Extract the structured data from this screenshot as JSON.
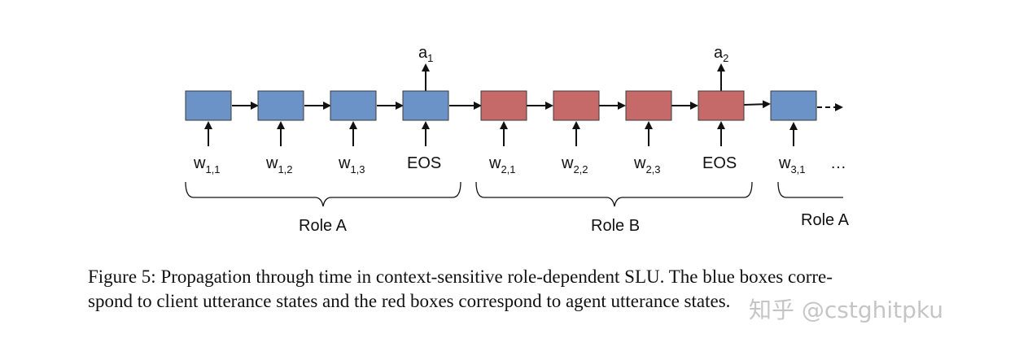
{
  "colors": {
    "client_box": "#6B93C7",
    "agent_box": "#C56A68",
    "box_stroke": "#3A3A3A"
  },
  "diagram": {
    "outputs": [
      {
        "label": "a",
        "sub": "1"
      },
      {
        "label": "a",
        "sub": "2"
      }
    ],
    "boxes": [
      {
        "type": "client",
        "input": "w",
        "sub": "1,1"
      },
      {
        "type": "client",
        "input": "w",
        "sub": "1,2"
      },
      {
        "type": "client",
        "input": "w",
        "sub": "1,3"
      },
      {
        "type": "client",
        "input": "EOS",
        "sub": ""
      },
      {
        "type": "agent",
        "input": "w",
        "sub": "2,1"
      },
      {
        "type": "agent",
        "input": "w",
        "sub": "2,2"
      },
      {
        "type": "agent",
        "input": "w",
        "sub": "2,3"
      },
      {
        "type": "agent",
        "input": "EOS",
        "sub": ""
      },
      {
        "type": "client",
        "input": "w",
        "sub": "3,1"
      }
    ],
    "ellipsis": "…",
    "roles": [
      "Role A",
      "Role B",
      "Role A"
    ]
  },
  "caption": {
    "line1": "Figure 5: Propagation through time in context-sensitive role-dependent SLU. The blue boxes corre-",
    "line2": "spond to client utterance states and the red boxes correspond to agent utterance states."
  },
  "watermark": "知乎 @cstghitpku"
}
